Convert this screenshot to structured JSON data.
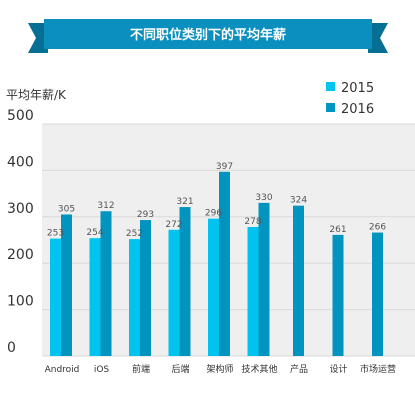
{
  "chart_data": {
    "type": "bar",
    "title": "不同职位类别下的平均年薪",
    "ylabel": "平均年薪/K",
    "xlabel": "",
    "ylim": [
      0,
      500
    ],
    "y_ticks": [
      0,
      100,
      200,
      300,
      400,
      500
    ],
    "categories": [
      "Android",
      "iOS",
      "前端",
      "后端",
      "架构师",
      "技术其他",
      "产品",
      "设计",
      "市场运营"
    ],
    "series": [
      {
        "name": "2015",
        "color": "#00c3f0",
        "values": [
          253,
          254,
          252,
          272,
          296,
          278,
          null,
          null,
          null
        ]
      },
      {
        "name": "2016",
        "color": "#0094bf",
        "values": [
          305,
          312,
          293,
          321,
          397,
          330,
          324,
          261,
          266
        ]
      }
    ],
    "legend_position": "top-right",
    "grid": true,
    "background_color": "#efefef",
    "banner_color": "#0b8fbf"
  }
}
